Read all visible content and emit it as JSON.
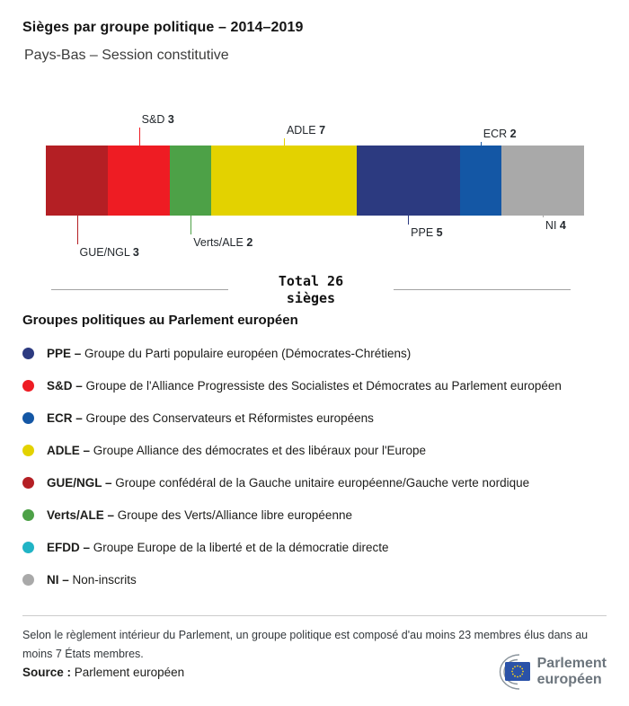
{
  "header": {
    "title": "Sièges par groupe politique – 2014–2019",
    "subtitle": "Pays-Bas – Session constitutive"
  },
  "chart_data": {
    "type": "bar",
    "orientation": "horizontal-stacked",
    "title": "Sièges par groupe politique – 2014–2019",
    "subtitle": "Pays-Bas – Session constitutive",
    "total_seats": 26,
    "total_label": "Total 26",
    "total_sublabel": "sièges",
    "segments": [
      {
        "group": "GUE/NGL",
        "seats": 3,
        "color": "#b41f24",
        "label_position": "below",
        "callout_line": 32
      },
      {
        "group": "S&D",
        "seats": 3,
        "color": "#ee1c23",
        "label_position": "above",
        "callout_line": 20
      },
      {
        "group": "Verts/ALE",
        "seats": 2,
        "color": "#4da147",
        "label_position": "below",
        "callout_line": 21
      },
      {
        "group": "ADLE",
        "seats": 7,
        "color": "#e3d200",
        "label_position": "above",
        "callout_line": 8
      },
      {
        "group": "PPE",
        "seats": 5,
        "color": "#2c3a80",
        "label_position": "below",
        "callout_line": 10
      },
      {
        "group": "ECR",
        "seats": 2,
        "color": "#1457a5",
        "label_position": "above",
        "callout_line": 4
      },
      {
        "group": "NI",
        "seats": 4,
        "color": "#a9a9a9",
        "label_position": "below",
        "callout_line": 2
      }
    ]
  },
  "legend": {
    "heading": "Groupes politiques au Parlement européen",
    "items": [
      {
        "abbr": "PPE –",
        "color": "#2c3a80",
        "desc": "Groupe du Parti populaire européen (Démocrates-Chrétiens)"
      },
      {
        "abbr": "S&D –",
        "color": "#ee1c23",
        "desc": "Groupe de l'Alliance Progressiste des Socialistes et Démocrates au Parlement européen"
      },
      {
        "abbr": "ECR –",
        "color": "#1457a5",
        "desc": "Groupe des Conservateurs et Réformistes européens"
      },
      {
        "abbr": "ADLE –",
        "color": "#e3d200",
        "desc": "Groupe Alliance des démocrates et des libéraux pour l'Europe"
      },
      {
        "abbr": "GUE/NGL –",
        "color": "#b41f24",
        "desc": "Groupe confédéral de la Gauche unitaire européenne/Gauche verte nordique"
      },
      {
        "abbr": "Verts/ALE –",
        "color": "#4da147",
        "desc": "Groupe des Verts/Alliance libre européenne"
      },
      {
        "abbr": "EFDD –",
        "color": "#21b4c5",
        "desc": "Groupe Europe de la liberté et de la démocratie directe"
      },
      {
        "abbr": "NI –",
        "color": "#a9a9a9",
        "desc": "Non-inscrits"
      }
    ]
  },
  "footnote": "Selon le règlement intérieur du Parlement, un groupe politique est composé d'au moins 23 membres élus dans au moins 7 États membres.",
  "source": {
    "label": "Source :",
    "value": "Parlement européen"
  },
  "logo": {
    "line1": "Parlement",
    "line2": "européen"
  }
}
